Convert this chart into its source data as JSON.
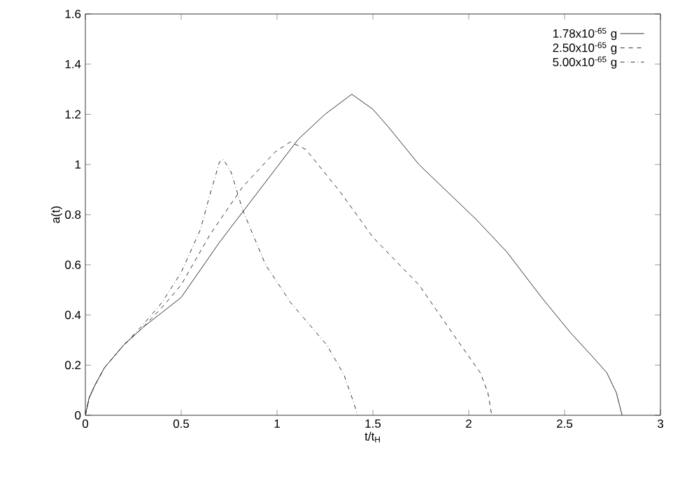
{
  "chart_data": {
    "type": "line",
    "xlabel": "t/t$_{H}$",
    "ylabel": "a(t)",
    "xlim": [
      0,
      3
    ],
    "ylim": [
      0,
      1.6
    ],
    "xticks": [
      0,
      0.5,
      1,
      1.5,
      2,
      2.5,
      3
    ],
    "yticks": [
      0,
      0.2,
      0.4,
      0.6,
      0.8,
      1,
      1.2,
      1.4,
      1.6
    ],
    "grid": false,
    "legend": "top right",
    "marker": "none",
    "series": [
      {
        "name": "1.78x10$^{-65}$ g",
        "color": "#333333",
        "line_style": "solid",
        "x": [
          0,
          0.02,
          0.05,
          0.1,
          0.2,
          0.3,
          0.4,
          0.5,
          0.6,
          0.7,
          0.83,
          1.0,
          1.11,
          1.25,
          1.39,
          1.5,
          1.58,
          1.74,
          2.04,
          2.2,
          2.38,
          2.53,
          2.65,
          2.72,
          2.77,
          2.8
        ],
        "values": [
          0,
          0.07,
          0.12,
          0.19,
          0.28,
          0.35,
          0.41,
          0.47,
          0.58,
          0.69,
          0.82,
          0.99,
          1.1,
          1.2,
          1.28,
          1.22,
          1.15,
          1.0,
          0.78,
          0.65,
          0.47,
          0.33,
          0.23,
          0.17,
          0.09,
          0
        ]
      },
      {
        "name": "2.50x10$^{-65}$ g",
        "color": "#333333",
        "line_style": "dashed",
        "x": [
          0,
          0.02,
          0.05,
          0.1,
          0.2,
          0.3,
          0.4,
          0.5,
          0.65,
          0.82,
          0.99,
          1.07,
          1.15,
          1.33,
          1.5,
          1.74,
          1.94,
          2.06,
          2.1,
          2.12
        ],
        "values": [
          0,
          0.07,
          0.12,
          0.19,
          0.28,
          0.35,
          0.43,
          0.52,
          0.72,
          0.91,
          1.05,
          1.09,
          1.06,
          0.89,
          0.71,
          0.52,
          0.3,
          0.17,
          0.09,
          0
        ]
      },
      {
        "name": "5.00x10$^{-65}$ g",
        "color": "#333333",
        "line_style": "dashdotted",
        "x": [
          0,
          0.02,
          0.05,
          0.1,
          0.2,
          0.3,
          0.4,
          0.5,
          0.6,
          0.65,
          0.7,
          0.72,
          0.76,
          0.82,
          0.94,
          1.01,
          1.07,
          1.26,
          1.35,
          1.4,
          1.42
        ],
        "values": [
          0,
          0.07,
          0.12,
          0.19,
          0.28,
          0.36,
          0.45,
          0.57,
          0.74,
          0.88,
          1.01,
          1.02,
          0.97,
          0.82,
          0.6,
          0.52,
          0.45,
          0.28,
          0.16,
          0.05,
          0
        ]
      }
    ]
  }
}
